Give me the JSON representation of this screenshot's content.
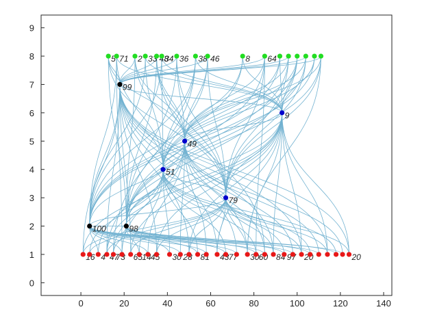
{
  "chart_data": {
    "type": "graph",
    "xlim": [
      -18.4,
      143.8
    ],
    "ylim": [
      -0.45,
      9.45
    ],
    "xticks": [
      0,
      20,
      40,
      60,
      80,
      100,
      120,
      140
    ],
    "yticks": [
      0,
      1,
      2,
      3,
      4,
      5,
      6,
      7,
      8,
      9
    ],
    "edge_color": "#5aa5c9",
    "series": [
      {
        "color": "#22dd22",
        "x": [
          12.7,
          16.5,
          25,
          29.8,
          35,
          37.4,
          44.3,
          53,
          58.6,
          74.8,
          85,
          92,
          96,
          100,
          104,
          108,
          111
        ],
        "values": [
          8,
          8,
          8,
          8,
          8,
          8,
          8,
          8,
          8,
          8,
          8,
          8,
          8,
          8,
          8,
          8,
          8
        ],
        "labels": [
          "5",
          "71",
          "2",
          "33",
          "48",
          "34",
          "36",
          "38",
          "46",
          "8",
          "64",
          null,
          null,
          null,
          null,
          null,
          null
        ]
      },
      {
        "color": "#e81818",
        "x": [
          1,
          4,
          8,
          12,
          15,
          19,
          23,
          27,
          31,
          35,
          41,
          46,
          50,
          54,
          58,
          63,
          67,
          72,
          77,
          81,
          85,
          89,
          94,
          98,
          102,
          106,
          110,
          114,
          118,
          121,
          124
        ],
        "values": [
          1,
          1,
          1,
          1,
          1,
          1,
          1,
          1,
          1,
          1,
          1,
          1,
          1,
          1,
          1,
          1,
          1,
          1,
          1,
          1,
          1,
          1,
          1,
          1,
          1,
          1,
          1,
          1,
          1,
          1,
          1
        ],
        "labels": [
          "16",
          null,
          "4",
          "47",
          "73",
          null,
          "65",
          "14",
          "45",
          null,
          "30",
          "28",
          null,
          "81",
          null,
          "43",
          "77",
          null,
          "30",
          "60",
          null,
          "84",
          "97",
          null,
          "20",
          null,
          null,
          null,
          null,
          null,
          "20"
        ]
      },
      {
        "color": "#000000",
        "x": [
          18,
          4,
          21
        ],
        "values": [
          7,
          2,
          2
        ],
        "labels": [
          "99",
          "100",
          "98"
        ]
      },
      {
        "color": "#0000cc",
        "x": [
          93,
          48,
          38,
          67
        ],
        "values": [
          6,
          5,
          4,
          3
        ],
        "labels": [
          "9",
          "49",
          "51",
          "79"
        ]
      }
    ]
  }
}
